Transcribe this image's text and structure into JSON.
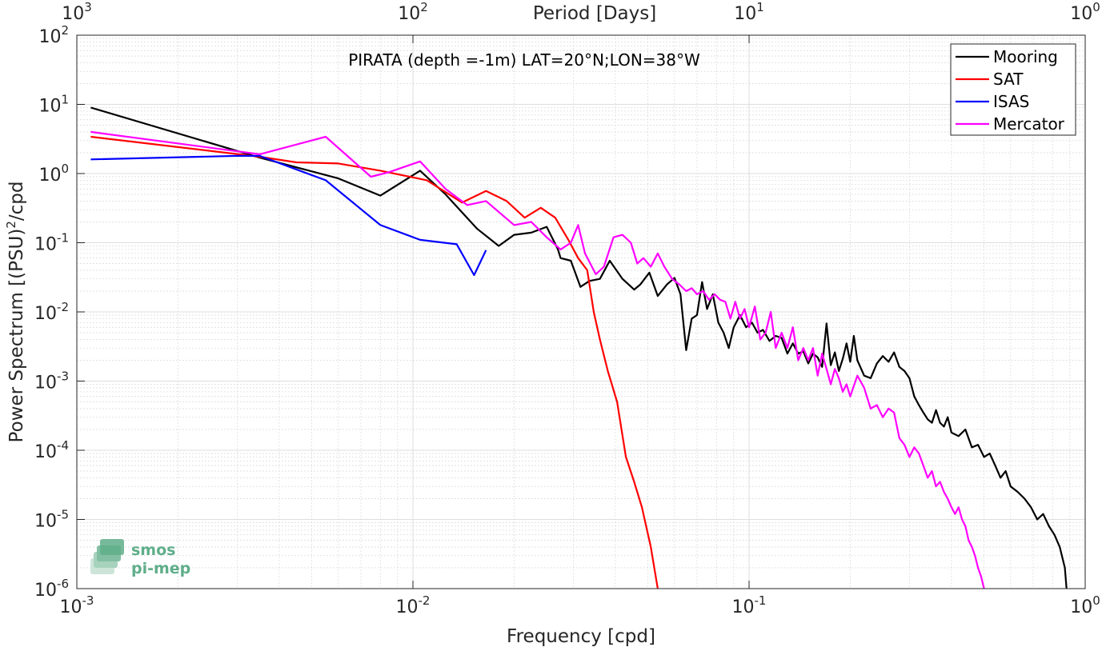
{
  "chart_data": {
    "type": "line",
    "title": "PIRATA (depth =-1m) LAT=20°N;LON=38°W",
    "xlabel": "Frequency [cpd]",
    "ylabel": "Power Spectrum [(PSU)",
    "ylabel_sup": "2",
    "ylabel_suffix": "/cpd",
    "top_xlabel": "Period [Days]",
    "x_scale": "log",
    "y_scale": "log",
    "xlim": [
      0.001,
      1
    ],
    "ylim": [
      1e-06,
      100
    ],
    "x_ticks": [
      {
        "base": "10",
        "exp": "-3",
        "value": 0.001
      },
      {
        "base": "10",
        "exp": "-2",
        "value": 0.01
      },
      {
        "base": "10",
        "exp": "-1",
        "value": 0.1
      },
      {
        "base": "10",
        "exp": "0",
        "value": 1
      }
    ],
    "y_ticks": [
      {
        "base": "10",
        "exp": "-6",
        "value": 1e-06
      },
      {
        "base": "10",
        "exp": "-5",
        "value": 1e-05
      },
      {
        "base": "10",
        "exp": "-4",
        "value": 0.0001
      },
      {
        "base": "10",
        "exp": "-3",
        "value": 0.001
      },
      {
        "base": "10",
        "exp": "-2",
        "value": 0.01
      },
      {
        "base": "10",
        "exp": "-1",
        "value": 0.1
      },
      {
        "base": "10",
        "exp": "0",
        "value": 1
      },
      {
        "base": "10",
        "exp": "1",
        "value": 10
      },
      {
        "base": "10",
        "exp": "2",
        "value": 100
      }
    ],
    "top_ticks": [
      {
        "base": "10",
        "exp": "3",
        "value": 1000
      },
      {
        "base": "10",
        "exp": "2",
        "value": 100
      },
      {
        "base": "10",
        "exp": "1",
        "value": 10
      },
      {
        "base": "10",
        "exp": "0",
        "value": 1
      }
    ],
    "grid": true,
    "legend_position": "top-right",
    "series": [
      {
        "name": "Mooring",
        "color": "#000000",
        "points": [
          [
            0.0011,
            9.0
          ],
          [
            0.0035,
            1.7
          ],
          [
            0.006,
            0.85
          ],
          [
            0.008,
            0.48
          ],
          [
            0.0105,
            1.1
          ],
          [
            0.0125,
            0.5
          ],
          [
            0.0155,
            0.16
          ],
          [
            0.018,
            0.09
          ],
          [
            0.02,
            0.13
          ],
          [
            0.0225,
            0.14
          ],
          [
            0.025,
            0.17
          ],
          [
            0.027,
            0.08
          ],
          [
            0.0275,
            0.06
          ],
          [
            0.0295,
            0.055
          ],
          [
            0.0315,
            0.023
          ],
          [
            0.0335,
            0.028
          ],
          [
            0.036,
            0.03
          ],
          [
            0.0385,
            0.055
          ],
          [
            0.042,
            0.03
          ],
          [
            0.0455,
            0.021
          ],
          [
            0.0475,
            0.025
          ],
          [
            0.0505,
            0.037
          ],
          [
            0.0535,
            0.017
          ],
          [
            0.057,
            0.025
          ],
          [
            0.06,
            0.031
          ],
          [
            0.0625,
            0.018
          ],
          [
            0.065,
            0.0028
          ],
          [
            0.0675,
            0.008
          ],
          [
            0.07,
            0.009
          ],
          [
            0.0725,
            0.027
          ],
          [
            0.075,
            0.011
          ],
          [
            0.078,
            0.018
          ],
          [
            0.081,
            0.007
          ],
          [
            0.084,
            0.005
          ],
          [
            0.087,
            0.003
          ],
          [
            0.09,
            0.006
          ],
          [
            0.094,
            0.009
          ],
          [
            0.098,
            0.006
          ],
          [
            0.102,
            0.007
          ],
          [
            0.106,
            0.005
          ],
          [
            0.11,
            0.0055
          ],
          [
            0.115,
            0.0038
          ],
          [
            0.12,
            0.0045
          ],
          [
            0.125,
            0.0042
          ],
          [
            0.13,
            0.0025
          ],
          [
            0.135,
            0.0035
          ],
          [
            0.14,
            0.0025
          ],
          [
            0.145,
            0.0027
          ],
          [
            0.15,
            0.0018
          ],
          [
            0.155,
            0.0025
          ],
          [
            0.16,
            0.0022
          ],
          [
            0.165,
            0.0016
          ],
          [
            0.17,
            0.0068
          ],
          [
            0.175,
            0.0017
          ],
          [
            0.18,
            0.0026
          ],
          [
            0.185,
            0.0014
          ],
          [
            0.19,
            0.0021
          ],
          [
            0.195,
            0.0035
          ],
          [
            0.2,
            0.0019
          ],
          [
            0.205,
            0.0045
          ],
          [
            0.21,
            0.002
          ],
          [
            0.22,
            0.0012
          ],
          [
            0.23,
            0.0011
          ],
          [
            0.24,
            0.0018
          ],
          [
            0.25,
            0.0023
          ],
          [
            0.26,
            0.0019
          ],
          [
            0.27,
            0.0026
          ],
          [
            0.28,
            0.0016
          ],
          [
            0.29,
            0.0014
          ],
          [
            0.3,
            0.0011
          ],
          [
            0.31,
            0.0006
          ],
          [
            0.32,
            0.00045
          ],
          [
            0.33,
            0.00035
          ],
          [
            0.34,
            0.00028
          ],
          [
            0.35,
            0.00025
          ],
          [
            0.36,
            0.00038
          ],
          [
            0.37,
            0.00025
          ],
          [
            0.38,
            0.00022
          ],
          [
            0.39,
            0.0003
          ],
          [
            0.4,
            0.00018
          ],
          [
            0.42,
            0.00016
          ],
          [
            0.44,
            0.0002
          ],
          [
            0.46,
            0.00011
          ],
          [
            0.48,
            0.00012
          ],
          [
            0.5,
            8e-05
          ],
          [
            0.52,
            9e-05
          ],
          [
            0.54,
            6e-05
          ],
          [
            0.56,
            4e-05
          ],
          [
            0.58,
            5e-05
          ],
          [
            0.6,
            3e-05
          ],
          [
            0.63,
            2.5e-05
          ],
          [
            0.66,
            2e-05
          ],
          [
            0.69,
            1.5e-05
          ],
          [
            0.72,
            1e-05
          ],
          [
            0.75,
            1.2e-05
          ],
          [
            0.78,
            8e-06
          ],
          [
            0.81,
            6e-06
          ],
          [
            0.84,
            4e-06
          ],
          [
            0.87,
            2e-06
          ],
          [
            0.88,
            1e-06
          ]
        ]
      },
      {
        "name": "SAT",
        "color": "#ff0000",
        "points": [
          [
            0.0011,
            3.4
          ],
          [
            0.0035,
            1.75
          ],
          [
            0.0045,
            1.45
          ],
          [
            0.006,
            1.4
          ],
          [
            0.008,
            1.1
          ],
          [
            0.011,
            0.8
          ],
          [
            0.014,
            0.38
          ],
          [
            0.0165,
            0.56
          ],
          [
            0.019,
            0.4
          ],
          [
            0.0215,
            0.23
          ],
          [
            0.024,
            0.32
          ],
          [
            0.0265,
            0.23
          ],
          [
            0.029,
            0.11
          ],
          [
            0.031,
            0.06
          ],
          [
            0.033,
            0.04
          ],
          [
            0.0345,
            0.01
          ],
          [
            0.036,
            0.004
          ],
          [
            0.038,
            0.0014
          ],
          [
            0.0405,
            0.0005
          ],
          [
            0.043,
            8e-05
          ],
          [
            0.0455,
            3.5e-05
          ],
          [
            0.048,
            1.5e-05
          ],
          [
            0.051,
            4e-06
          ],
          [
            0.0535,
            1e-06
          ]
        ]
      },
      {
        "name": "ISAS",
        "color": "#0000ff",
        "points": [
          [
            0.0011,
            1.6
          ],
          [
            0.003,
            1.8
          ],
          [
            0.0035,
            1.8
          ],
          [
            0.0055,
            0.8
          ],
          [
            0.008,
            0.18
          ],
          [
            0.0105,
            0.11
          ],
          [
            0.0135,
            0.095
          ],
          [
            0.0152,
            0.034
          ],
          [
            0.0165,
            0.078
          ]
        ]
      },
      {
        "name": "Mercator",
        "color": "#ff00ff",
        "points": [
          [
            0.0011,
            4.0
          ],
          [
            0.0035,
            1.9
          ],
          [
            0.0055,
            3.4
          ],
          [
            0.0075,
            0.9
          ],
          [
            0.0085,
            1.05
          ],
          [
            0.0105,
            1.5
          ],
          [
            0.0125,
            0.6
          ],
          [
            0.0145,
            0.35
          ],
          [
            0.0165,
            0.4
          ],
          [
            0.02,
            0.18
          ],
          [
            0.0225,
            0.2
          ],
          [
            0.025,
            0.12
          ],
          [
            0.0275,
            0.08
          ],
          [
            0.0295,
            0.1
          ],
          [
            0.031,
            0.18
          ],
          [
            0.0325,
            0.07
          ],
          [
            0.035,
            0.035
          ],
          [
            0.037,
            0.045
          ],
          [
            0.0395,
            0.12
          ],
          [
            0.042,
            0.13
          ],
          [
            0.0445,
            0.1
          ],
          [
            0.0465,
            0.05
          ],
          [
            0.0485,
            0.06
          ],
          [
            0.051,
            0.045
          ],
          [
            0.0535,
            0.07
          ],
          [
            0.056,
            0.045
          ],
          [
            0.059,
            0.03
          ],
          [
            0.062,
            0.025
          ],
          [
            0.065,
            0.02
          ],
          [
            0.0675,
            0.022
          ],
          [
            0.07,
            0.018
          ],
          [
            0.073,
            0.02
          ],
          [
            0.076,
            0.015
          ],
          [
            0.079,
            0.018
          ],
          [
            0.082,
            0.015
          ],
          [
            0.085,
            0.014
          ],
          [
            0.088,
            0.008
          ],
          [
            0.091,
            0.014
          ],
          [
            0.094,
            0.008
          ],
          [
            0.097,
            0.011
          ],
          [
            0.1,
            0.006
          ],
          [
            0.104,
            0.012
          ],
          [
            0.108,
            0.004
          ],
          [
            0.112,
            0.005
          ],
          [
            0.116,
            0.01
          ],
          [
            0.12,
            0.003
          ],
          [
            0.125,
            0.005
          ],
          [
            0.13,
            0.003
          ],
          [
            0.135,
            0.006
          ],
          [
            0.14,
            0.002
          ],
          [
            0.145,
            0.003
          ],
          [
            0.15,
            0.002
          ],
          [
            0.155,
            0.003
          ],
          [
            0.16,
            0.0012
          ],
          [
            0.165,
            0.0025
          ],
          [
            0.17,
            0.0015
          ],
          [
            0.175,
            0.0009
          ],
          [
            0.18,
            0.0015
          ],
          [
            0.185,
            0.0011
          ],
          [
            0.19,
            0.0007
          ],
          [
            0.195,
            0.0009
          ],
          [
            0.2,
            0.0006
          ],
          [
            0.21,
            0.0012
          ],
          [
            0.22,
            0.0008
          ],
          [
            0.23,
            0.0004
          ],
          [
            0.24,
            0.00045
          ],
          [
            0.25,
            0.0003
          ],
          [
            0.26,
            0.0004
          ],
          [
            0.27,
            0.00035
          ],
          [
            0.28,
            0.00015
          ],
          [
            0.29,
            0.00012
          ],
          [
            0.3,
            8e-05
          ],
          [
            0.31,
            0.00011
          ],
          [
            0.32,
            9e-05
          ],
          [
            0.33,
            6e-05
          ],
          [
            0.34,
            4e-05
          ],
          [
            0.35,
            5e-05
          ],
          [
            0.36,
            3e-05
          ],
          [
            0.37,
            3.5e-05
          ],
          [
            0.38,
            2.5e-05
          ],
          [
            0.39,
            2e-05
          ],
          [
            0.4,
            1.5e-05
          ],
          [
            0.41,
            1.2e-05
          ],
          [
            0.42,
            1.5e-05
          ],
          [
            0.43,
            1e-05
          ],
          [
            0.44,
            8e-06
          ],
          [
            0.45,
            5e-06
          ],
          [
            0.46,
            4e-06
          ],
          [
            0.47,
            3e-06
          ],
          [
            0.48,
            2e-06
          ],
          [
            0.49,
            1.5e-06
          ],
          [
            0.5,
            1e-06
          ]
        ]
      }
    ],
    "logo": {
      "line1": "smos",
      "line2": "pi-mep",
      "color": "#5fae8a"
    }
  }
}
